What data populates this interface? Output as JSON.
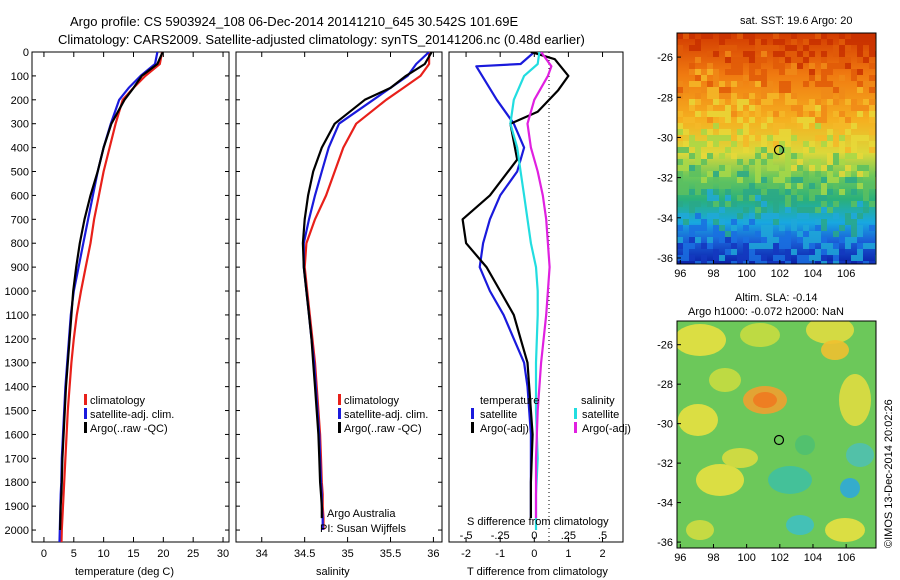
{
  "header": {
    "line1": "Argo profile: CS 5903924_108 06-Dec-2014 20141210_645 30.542S 101.69E",
    "line2": "Climatology: CARS2009. Satellite-adjusted climatology: synTS_20141206.nc (0.48d earlier)"
  },
  "footer": {
    "stamp": "©IMOS 13-Dec-2014 20:02:26",
    "credit1": "Argo Australia",
    "credit2": "PI: Susan Wijffels"
  },
  "colors": {
    "climatology": "#e8201a",
    "satellite": "#1a1adc",
    "argo": "#000000",
    "sal_satellite": "#22dde0",
    "sal_argo": "#e020e0"
  },
  "chart_data": [
    {
      "type": "line",
      "xlabel": "temperature (deg C)",
      "ylabel": "",
      "xlim": [
        -2,
        31
      ],
      "ylim": [
        2050,
        0
      ],
      "xticks": [
        0,
        5,
        10,
        15,
        20,
        25,
        30
      ],
      "yticks": [
        0,
        100,
        200,
        300,
        400,
        500,
        600,
        700,
        800,
        900,
        1000,
        1100,
        1200,
        1300,
        1400,
        1500,
        1600,
        1700,
        1800,
        1900,
        2000
      ],
      "legend": [
        "climatology",
        "satellite-adj. clim.",
        "Argo(..raw -QC)"
      ],
      "legend_position": "lower-right",
      "series": [
        {
          "name": "climatology",
          "color_key": "climatology",
          "x": [
            19.8,
            19.4,
            17.0,
            15.0,
            13.2,
            12.0,
            11.0,
            10.0,
            9.2,
            8.4,
            7.8,
            7.0,
            6.2,
            5.5,
            5.0,
            4.6,
            4.3,
            4.0,
            3.8,
            3.6,
            3.4,
            3.3,
            3.2,
            3.1,
            3.0,
            2.95
          ],
          "y": [
            0,
            50,
            100,
            150,
            200,
            300,
            400,
            500,
            600,
            700,
            800,
            900,
            1000,
            1100,
            1200,
            1300,
            1400,
            1500,
            1600,
            1700,
            1800,
            1850,
            1900,
            1950,
            2000,
            2050
          ]
        },
        {
          "name": "satellite-adj. clim.",
          "color_key": "satellite",
          "x": [
            19.0,
            18.6,
            16.2,
            14.2,
            12.6,
            11.2,
            10.0,
            9.0,
            8.2,
            7.4,
            6.6,
            5.8,
            5.0,
            4.5,
            4.2,
            3.9,
            3.6,
            3.4,
            3.2,
            3.0,
            2.9,
            2.8,
            2.75,
            2.7,
            2.65,
            2.6
          ],
          "y": [
            0,
            50,
            100,
            150,
            200,
            300,
            400,
            500,
            600,
            700,
            800,
            900,
            1000,
            1100,
            1200,
            1300,
            1400,
            1500,
            1600,
            1700,
            1800,
            1850,
            1900,
            1950,
            2000,
            2050
          ]
        },
        {
          "name": "Argo(..raw -QC)",
          "color_key": "argo",
          "x": [
            19.9,
            19.0,
            16.4,
            15.0,
            13.5,
            11.3,
            10.0,
            9.0,
            7.8,
            6.8,
            6.0,
            5.4,
            4.9,
            4.6,
            4.3,
            4.0,
            3.7,
            3.5,
            3.3,
            3.1,
            3.0,
            2.9,
            2.8,
            2.75,
            2.7
          ],
          "y": [
            0,
            50,
            100,
            150,
            200,
            300,
            400,
            500,
            600,
            700,
            800,
            900,
            1000,
            1100,
            1200,
            1300,
            1400,
            1500,
            1600,
            1700,
            1800,
            1850,
            1900,
            1950,
            2000
          ]
        }
      ]
    },
    {
      "type": "line",
      "xlabel": "salinity",
      "ylabel": "",
      "xlim": [
        33.7,
        36.1
      ],
      "ylim": [
        2050,
        0
      ],
      "xticks": [
        34,
        34.5,
        35,
        35.5,
        36
      ],
      "yticks": [
        0,
        100,
        200,
        300,
        400,
        500,
        600,
        700,
        800,
        900,
        1000,
        1100,
        1200,
        1300,
        1400,
        1500,
        1600,
        1700,
        1800,
        1900,
        2000
      ],
      "legend": [
        "climatology",
        "satellite-adj. clim.",
        "Argo(..raw -QC)"
      ],
      "legend_position": "lower-right",
      "series": [
        {
          "name": "climatology",
          "color_key": "climatology",
          "x": [
            35.95,
            35.95,
            35.85,
            35.65,
            35.45,
            35.1,
            34.95,
            34.85,
            34.75,
            34.62,
            34.52,
            34.5,
            34.53,
            34.56,
            34.59,
            34.62,
            34.64,
            34.66,
            34.68,
            34.69,
            34.7,
            34.71,
            34.71,
            34.72,
            34.72
          ],
          "y": [
            0,
            50,
            100,
            150,
            200,
            300,
            400,
            500,
            600,
            700,
            800,
            900,
            1000,
            1100,
            1200,
            1300,
            1400,
            1500,
            1600,
            1700,
            1800,
            1850,
            1900,
            1950,
            2000
          ]
        },
        {
          "name": "satellite-adj. clim.",
          "color_key": "satellite",
          "x": [
            35.95,
            35.8,
            35.7,
            35.5,
            35.3,
            34.9,
            34.78,
            34.7,
            34.62,
            34.55,
            34.49,
            34.49,
            34.52,
            34.55,
            34.58,
            34.61,
            34.63,
            34.65,
            34.67,
            34.68,
            34.69,
            34.7,
            34.7,
            34.71,
            34.71
          ],
          "y": [
            0,
            50,
            100,
            150,
            200,
            300,
            400,
            500,
            600,
            700,
            800,
            900,
            1000,
            1100,
            1200,
            1300,
            1400,
            1500,
            1600,
            1700,
            1800,
            1850,
            1900,
            1950,
            2000
          ]
        },
        {
          "name": "Argo(..raw -QC)",
          "color_key": "argo",
          "x": [
            35.98,
            35.9,
            35.68,
            35.5,
            35.2,
            34.85,
            34.7,
            34.6,
            34.54,
            34.5,
            34.48,
            34.49,
            34.52,
            34.55,
            34.58,
            34.6,
            34.62,
            34.64,
            34.66,
            34.67,
            34.68,
            34.69,
            34.7,
            34.7
          ],
          "y": [
            0,
            50,
            100,
            150,
            200,
            300,
            400,
            500,
            600,
            700,
            800,
            900,
            1000,
            1100,
            1200,
            1300,
            1400,
            1500,
            1600,
            1700,
            1800,
            1850,
            1900,
            1950
          ]
        }
      ]
    },
    {
      "type": "line",
      "xlabel": "T difference from climatology",
      "xlabel2": "S difference from climatology",
      "xlim": [
        -2.5,
        2.6
      ],
      "ylim": [
        2050,
        0
      ],
      "xticks": [
        -2,
        -1,
        0,
        1,
        2
      ],
      "xticks_s": [
        -0.5,
        -0.25,
        0,
        0.25,
        0.5
      ],
      "grid_zero_line": true,
      "legend_temperature_title": "temperature",
      "legend_salinity_title": "salinity",
      "legend": [
        "satellite",
        "Argo(-adj)",
        "satellite",
        "Argo(-adj)"
      ],
      "series": [
        {
          "name": "satellite",
          "group": "temperature",
          "color_key": "satellite",
          "x": [
            0.0,
            -0.4,
            -1.7,
            -1.1,
            -0.6,
            -0.3,
            -0.5,
            -1.0,
            -1.3,
            -1.5,
            -1.6,
            -1.3,
            -0.9,
            -0.6,
            -0.3,
            -0.2,
            -0.15,
            -0.1,
            -0.1,
            -0.1,
            -0.1
          ],
          "y": [
            0,
            50,
            60,
            200,
            300,
            400,
            500,
            600,
            700,
            800,
            900,
            1000,
            1100,
            1200,
            1300,
            1400,
            1500,
            1600,
            1700,
            1800,
            1950
          ]
        },
        {
          "name": "Argo(-adj)",
          "group": "temperature",
          "color_key": "argo",
          "x": [
            -0.1,
            0.6,
            1.0,
            0.7,
            0.1,
            -0.7,
            -0.5,
            -1.3,
            -2.1,
            -2.0,
            -1.4,
            -1.0,
            -0.6,
            -0.4,
            -0.2,
            -0.15,
            -0.1,
            -0.05,
            -0.1,
            -0.1
          ],
          "y": [
            0,
            30,
            100,
            160,
            250,
            300,
            450,
            600,
            700,
            800,
            900,
            1000,
            1100,
            1200,
            1300,
            1400,
            1500,
            1600,
            1800,
            1950
          ]
        },
        {
          "name": "satellite",
          "group": "salinity",
          "color_key": "sal_satellite",
          "x": [
            0.15,
            0.1,
            -0.3,
            -0.6,
            -0.7,
            -0.5,
            -0.4,
            -0.3,
            -0.2,
            -0.1,
            0.05,
            0.1,
            0.1,
            0.05,
            0.05,
            0.1,
            0.05,
            0.05
          ],
          "y": [
            0,
            50,
            100,
            200,
            300,
            400,
            500,
            600,
            700,
            800,
            900,
            1000,
            1100,
            1300,
            1500,
            1700,
            1850,
            2000
          ]
        },
        {
          "name": "Argo(-adj)",
          "group": "salinity",
          "color_key": "sal_argo",
          "x": [
            0.2,
            0.5,
            0.4,
            0.0,
            -0.2,
            -0.1,
            0.1,
            0.25,
            0.35,
            0.4,
            0.45,
            0.4,
            0.35,
            0.2,
            0.1,
            0.05,
            0.05
          ],
          "y": [
            0,
            60,
            100,
            200,
            300,
            400,
            500,
            600,
            700,
            800,
            900,
            1000,
            1100,
            1300,
            1500,
            1700,
            1950
          ]
        }
      ]
    },
    {
      "type": "heatmap",
      "title": "sat. SST: 19.6 Argo: 20",
      "xlim": [
        95.8,
        107.8
      ],
      "ylim": [
        -36.3,
        -24.8
      ],
      "xticks": [
        96,
        98,
        100,
        102,
        104,
        106
      ],
      "yticks": [
        -26,
        -28,
        -30,
        -32,
        -34,
        -36
      ],
      "marker": {
        "lon": 101.69,
        "lat": -30.542
      },
      "colormap": "jet",
      "gradient": "warm north, cool south"
    },
    {
      "type": "heatmap",
      "title": "Altim. SLA: -0.14",
      "subtitle": "Argo h1000: -0.072 h2000: NaN",
      "xlim": [
        95.8,
        107.8
      ],
      "ylim": [
        -36.3,
        -24.8
      ],
      "xticks": [
        96,
        98,
        100,
        102,
        104,
        106
      ],
      "yticks": [
        -26,
        -28,
        -30,
        -32,
        -34,
        -36
      ],
      "marker": {
        "lon": 101.69,
        "lat": -30.542
      },
      "colormap": "jet"
    }
  ]
}
